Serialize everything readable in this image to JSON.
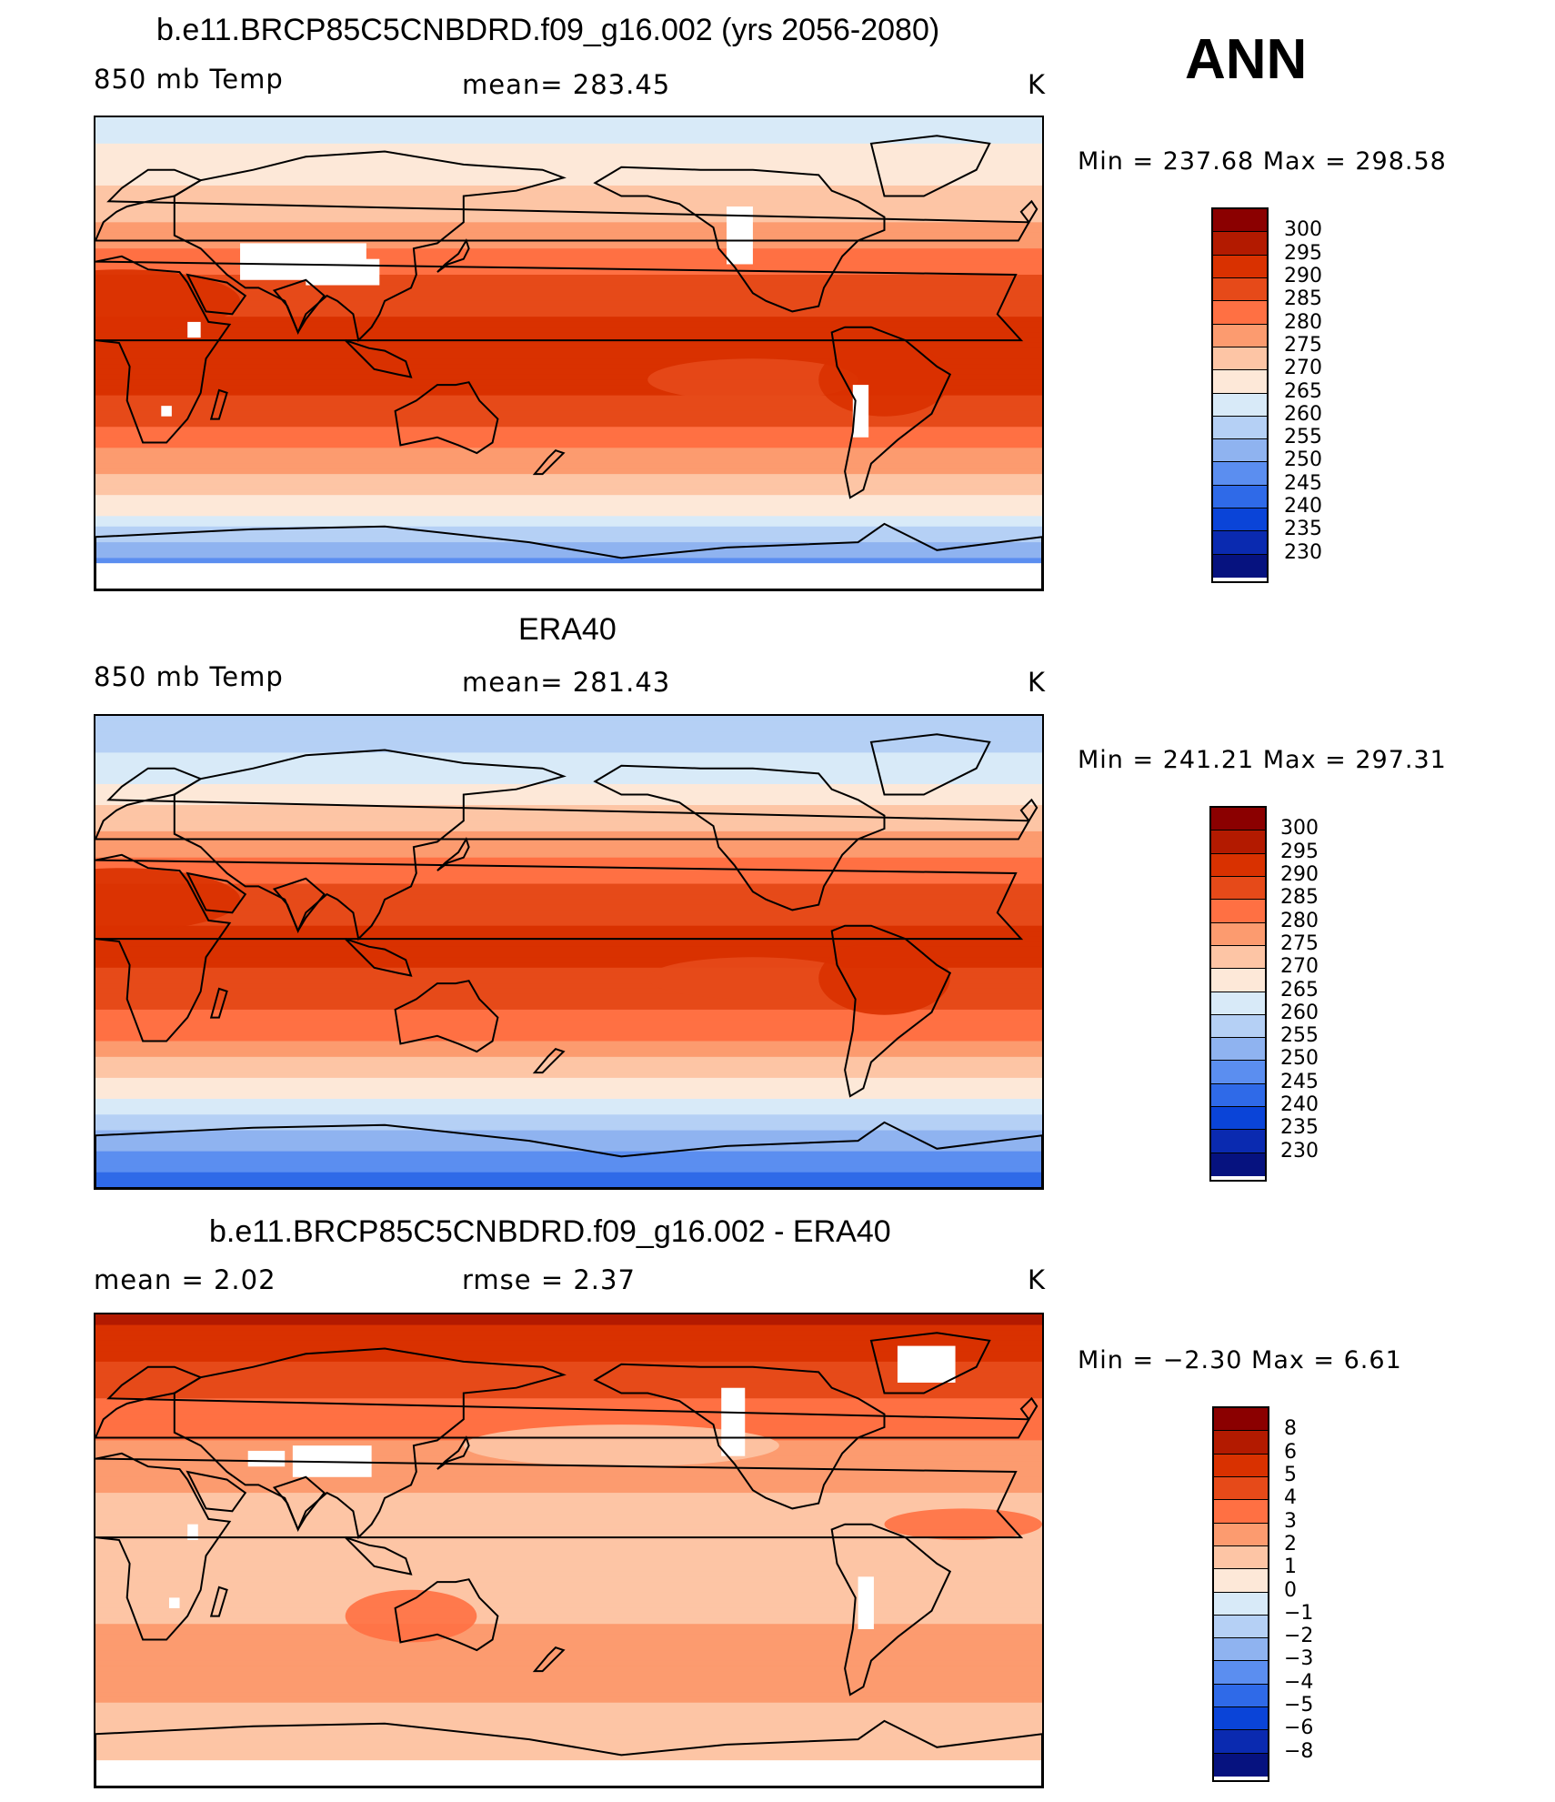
{
  "season": "ANN",
  "colors": {
    "warm": [
      "#8b0000",
      "#b31a00",
      "#d93100",
      "#e64a19",
      "#ff7043",
      "#fc9b6f",
      "#fdc5a5",
      "#fde8d8"
    ],
    "cool": [
      "#d8eaf8",
      "#b5d0f5",
      "#8fb3f0",
      "#5b8ef0",
      "#2f6ae8",
      "#0a44d8",
      "#0a2ab0",
      "#06127f"
    ],
    "land_blank": "#ffffff",
    "coast": "#000000"
  },
  "panels": [
    {
      "title": "b.e11.BRCP85C5CNBDRD.f09_g16.002 (yrs 2056-2080)",
      "left": "850 mb Temp",
      "center": "mean=  283.45",
      "units": "K",
      "minmax": "Min  =  237.68  Max  =  298.58",
      "levels": [
        "300",
        "295",
        "290",
        "285",
        "280",
        "275",
        "270",
        "265",
        "260",
        "255",
        "250",
        "245",
        "240",
        "235",
        "230"
      ],
      "profile": [
        {
          "lat": 90,
          "v": 262
        },
        {
          "lat": 70,
          "v": 268
        },
        {
          "lat": 55,
          "v": 273
        },
        {
          "lat": 40,
          "v": 280
        },
        {
          "lat": 25,
          "v": 287
        },
        {
          "lat": 10,
          "v": 291
        },
        {
          "lat": 0,
          "v": 292
        },
        {
          "lat": -15,
          "v": 290
        },
        {
          "lat": -30,
          "v": 284
        },
        {
          "lat": -45,
          "v": 275
        },
        {
          "lat": -60,
          "v": 266
        },
        {
          "lat": -75,
          "v": 252
        },
        {
          "lat": -90,
          "v": 240
        }
      ],
      "kind": "abs"
    },
    {
      "title": "ERA40",
      "left": "850 mb Temp",
      "center": "mean=  281.43",
      "units": "K",
      "minmax": "Min  =  241.21  Max  =  297.31",
      "levels": [
        "300",
        "295",
        "290",
        "285",
        "280",
        "275",
        "270",
        "265",
        "260",
        "255",
        "250",
        "245",
        "240",
        "235",
        "230"
      ],
      "profile": [
        {
          "lat": 90,
          "v": 256
        },
        {
          "lat": 70,
          "v": 262
        },
        {
          "lat": 55,
          "v": 270
        },
        {
          "lat": 40,
          "v": 278
        },
        {
          "lat": 25,
          "v": 286
        },
        {
          "lat": 10,
          "v": 290
        },
        {
          "lat": 0,
          "v": 291
        },
        {
          "lat": -15,
          "v": 288
        },
        {
          "lat": -30,
          "v": 282
        },
        {
          "lat": -45,
          "v": 272
        },
        {
          "lat": -60,
          "v": 262
        },
        {
          "lat": -75,
          "v": 250
        },
        {
          "lat": -90,
          "v": 241
        }
      ],
      "kind": "abs"
    },
    {
      "title": "b.e11.BRCP85C5CNBDRD.f09_g16.002 - ERA40",
      "left": "mean =      2.02",
      "center": "rmse =      2.37",
      "units": "K",
      "minmax": "Min  =    −2.30  Max  =      6.61",
      "levels": [
        "8",
        "6",
        "5",
        "4",
        "3",
        "2",
        "1",
        "0",
        "−1",
        "−2",
        "−3",
        "−4",
        "−5",
        "−6",
        "−8"
      ],
      "profile": [
        {
          "lat": 90,
          "v": 6.2
        },
        {
          "lat": 75,
          "v": 5.2
        },
        {
          "lat": 60,
          "v": 4.1
        },
        {
          "lat": 45,
          "v": 3.2
        },
        {
          "lat": 30,
          "v": 2.2
        },
        {
          "lat": 15,
          "v": 1.8
        },
        {
          "lat": 0,
          "v": 1.9
        },
        {
          "lat": -20,
          "v": 1.7
        },
        {
          "lat": -40,
          "v": 2.4
        },
        {
          "lat": -55,
          "v": 2.1
        },
        {
          "lat": -65,
          "v": 1.6
        },
        {
          "lat": -90,
          "v": 1.2
        }
      ],
      "kind": "diff"
    }
  ],
  "chart_data": [
    {
      "type": "heatmap",
      "title": "b.e11.BRCP85C5CNBDRD.f09_g16.002 (yrs 2056-2080)",
      "variable": "850 mb Temp",
      "units": "K",
      "mean": 283.45,
      "min": 237.68,
      "max": 298.58,
      "contour_levels": [
        230,
        235,
        240,
        245,
        250,
        255,
        260,
        265,
        270,
        275,
        280,
        285,
        290,
        295,
        300
      ],
      "zonal_mean_estimate": {
        "lat": [
          90,
          70,
          55,
          40,
          25,
          10,
          0,
          -15,
          -30,
          -45,
          -60,
          -75,
          -90
        ],
        "value": [
          262,
          268,
          273,
          280,
          287,
          291,
          292,
          290,
          284,
          275,
          266,
          252,
          240
        ]
      }
    },
    {
      "type": "heatmap",
      "title": "ERA40",
      "variable": "850 mb Temp",
      "units": "K",
      "mean": 281.43,
      "min": 241.21,
      "max": 297.31,
      "contour_levels": [
        230,
        235,
        240,
        245,
        250,
        255,
        260,
        265,
        270,
        275,
        280,
        285,
        290,
        295,
        300
      ],
      "zonal_mean_estimate": {
        "lat": [
          90,
          70,
          55,
          40,
          25,
          10,
          0,
          -15,
          -30,
          -45,
          -60,
          -75,
          -90
        ],
        "value": [
          256,
          262,
          270,
          278,
          286,
          290,
          291,
          288,
          282,
          272,
          262,
          250,
          241
        ]
      }
    },
    {
      "type": "heatmap",
      "title": "b.e11.BRCP85C5CNBDRD.f09_g16.002 - ERA40",
      "units": "K",
      "mean": 2.02,
      "rmse": 2.37,
      "min": -2.3,
      "max": 6.61,
      "contour_levels": [
        -8,
        -6,
        -5,
        -4,
        -3,
        -2,
        -1,
        0,
        1,
        2,
        3,
        4,
        5,
        6,
        8
      ],
      "zonal_mean_estimate": {
        "lat": [
          90,
          75,
          60,
          45,
          30,
          15,
          0,
          -20,
          -40,
          -55,
          -65,
          -90
        ],
        "value": [
          6.2,
          5.2,
          4.1,
          3.2,
          2.2,
          1.8,
          1.9,
          1.7,
          2.4,
          2.1,
          1.6,
          1.2
        ]
      }
    }
  ]
}
